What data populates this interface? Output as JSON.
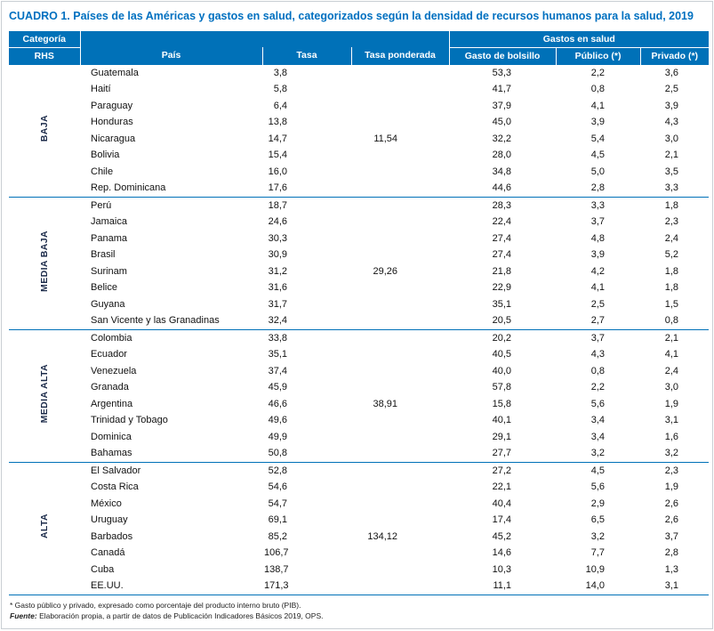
{
  "title": "CUADRO 1. Países de las Américas y gastos en salud, categorizados según la densidad de recursos humanos para la salud, 2019",
  "colors": {
    "header_blue": "#0071B8",
    "title_blue": "#0070C0",
    "separator_blue": "#0071B8"
  },
  "table": {
    "header": {
      "category_top": "Categoría",
      "category_bottom": "RHS",
      "pais": "País",
      "tasa": "Tasa",
      "tasa_ponderada": "Tasa ponderada",
      "gastos_group": "Gastos en salud",
      "gasto_bolsillo": "Gasto de bolsillo",
      "publico": "Público (*)",
      "privado": "Privado (*)"
    },
    "groups": [
      {
        "category": "BAJA",
        "rows": [
          {
            "pais": "Guatemala",
            "tasa": "3,8",
            "tasa_ponderada": "",
            "bolsillo": "53,3",
            "publico": "2,2",
            "privado": "3,6"
          },
          {
            "pais": "Haití",
            "tasa": "5,8",
            "tasa_ponderada": "",
            "bolsillo": "41,7",
            "publico": "0,8",
            "privado": "2,5"
          },
          {
            "pais": "Paraguay",
            "tasa": "6,4",
            "tasa_ponderada": "",
            "bolsillo": "37,9",
            "publico": "4,1",
            "privado": "3,9"
          },
          {
            "pais": "Honduras",
            "tasa": "13,8",
            "tasa_ponderada": "",
            "bolsillo": "45,0",
            "publico": "3,9",
            "privado": "4,3"
          },
          {
            "pais": "Nicaragua",
            "tasa": "14,7",
            "tasa_ponderada": "11,54",
            "bolsillo": "32,2",
            "publico": "5,4",
            "privado": "3,0"
          },
          {
            "pais": "Bolivia",
            "tasa": "15,4",
            "tasa_ponderada": "",
            "bolsillo": "28,0",
            "publico": "4,5",
            "privado": "2,1"
          },
          {
            "pais": "Chile",
            "tasa": "16,0",
            "tasa_ponderada": "",
            "bolsillo": "34,8",
            "publico": "5,0",
            "privado": "3,5"
          },
          {
            "pais": "Rep. Dominicana",
            "tasa": "17,6",
            "tasa_ponderada": "",
            "bolsillo": "44,6",
            "publico": "2,8",
            "privado": "3,3"
          }
        ]
      },
      {
        "category": "MEDIA BAJA",
        "rows": [
          {
            "pais": "Perú",
            "tasa": "18,7",
            "tasa_ponderada": "",
            "bolsillo": "28,3",
            "publico": "3,3",
            "privado": "1,8"
          },
          {
            "pais": "Jamaica",
            "tasa": "24,6",
            "tasa_ponderada": "",
            "bolsillo": "22,4",
            "publico": "3,7",
            "privado": "2,3"
          },
          {
            "pais": "Panama",
            "tasa": "30,3",
            "tasa_ponderada": "",
            "bolsillo": "27,4",
            "publico": "4,8",
            "privado": "2,4"
          },
          {
            "pais": "Brasil",
            "tasa": "30,9",
            "tasa_ponderada": "",
            "bolsillo": "27,4",
            "publico": "3,9",
            "privado": "5,2"
          },
          {
            "pais": "Surinam",
            "tasa": "31,2",
            "tasa_ponderada": "29,26",
            "bolsillo": "21,8",
            "publico": "4,2",
            "privado": "1,8"
          },
          {
            "pais": "Belice",
            "tasa": "31,6",
            "tasa_ponderada": "",
            "bolsillo": "22,9",
            "publico": "4,1",
            "privado": "1,8"
          },
          {
            "pais": "Guyana",
            "tasa": "31,7",
            "tasa_ponderada": "",
            "bolsillo": "35,1",
            "publico": "2,5",
            "privado": "1,5"
          },
          {
            "pais": "San Vicente y las Granadinas",
            "tasa": "32,4",
            "tasa_ponderada": "",
            "bolsillo": "20,5",
            "publico": "2,7",
            "privado": "0,8"
          }
        ]
      },
      {
        "category": "MEDIA ALTA",
        "rows": [
          {
            "pais": "Colombia",
            "tasa": "33,8",
            "tasa_ponderada": "",
            "bolsillo": "20,2",
            "publico": "3,7",
            "privado": "2,1"
          },
          {
            "pais": "Ecuador",
            "tasa": "35,1",
            "tasa_ponderada": "",
            "bolsillo": "40,5",
            "publico": "4,3",
            "privado": "4,1"
          },
          {
            "pais": "Venezuela",
            "tasa": "37,4",
            "tasa_ponderada": "",
            "bolsillo": "40,0",
            "publico": "0,8",
            "privado": "2,4"
          },
          {
            "pais": "Granada",
            "tasa": "45,9",
            "tasa_ponderada": "",
            "bolsillo": "57,8",
            "publico": "2,2",
            "privado": "3,0"
          },
          {
            "pais": "Argentina",
            "tasa": "46,6",
            "tasa_ponderada": "38,91",
            "bolsillo": "15,8",
            "publico": "5,6",
            "privado": "1,9"
          },
          {
            "pais": "Trinidad y Tobago",
            "tasa": "49,6",
            "tasa_ponderada": "",
            "bolsillo": "40,1",
            "publico": "3,4",
            "privado": "3,1"
          },
          {
            "pais": "Dominica",
            "tasa": "49,9",
            "tasa_ponderada": "",
            "bolsillo": "29,1",
            "publico": "3,4",
            "privado": "1,6"
          },
          {
            "pais": "Bahamas",
            "tasa": "50,8",
            "tasa_ponderada": "",
            "bolsillo": "27,7",
            "publico": "3,2",
            "privado": "3,2"
          }
        ]
      },
      {
        "category": "ALTA",
        "rows": [
          {
            "pais": "El Salvador",
            "tasa": "52,8",
            "tasa_ponderada": "",
            "bolsillo": "27,2",
            "publico": "4,5",
            "privado": "2,3"
          },
          {
            "pais": "Costa Rica",
            "tasa": "54,6",
            "tasa_ponderada": "",
            "bolsillo": "22,1",
            "publico": "5,6",
            "privado": "1,9"
          },
          {
            "pais": "México",
            "tasa": "54,7",
            "tasa_ponderada": "",
            "bolsillo": "40,4",
            "publico": "2,9",
            "privado": "2,6"
          },
          {
            "pais": "Uruguay",
            "tasa": "69,1",
            "tasa_ponderada": "",
            "bolsillo": "17,4",
            "publico": "6,5",
            "privado": "2,6"
          },
          {
            "pais": "Barbados",
            "tasa": "85,2",
            "tasa_ponderada": "134,12",
            "bolsillo": "45,2",
            "publico": "3,2",
            "privado": "3,7"
          },
          {
            "pais": "Canadá",
            "tasa": "106,7",
            "tasa_ponderada": "",
            "bolsillo": "14,6",
            "publico": "7,7",
            "privado": "2,8"
          },
          {
            "pais": "Cuba",
            "tasa": "138,7",
            "tasa_ponderada": "",
            "bolsillo": "10,3",
            "publico": "10,9",
            "privado": "1,3"
          },
          {
            "pais": "EE.UU.",
            "tasa": "171,3",
            "tasa_ponderada": "",
            "bolsillo": "11,1",
            "publico": "14,0",
            "privado": "3,1"
          }
        ]
      }
    ]
  },
  "footnotes": {
    "note": "* Gasto público y privado, expresado como porcentaje del producto interno bruto (PIB).",
    "source_label": "Fuente:",
    "source_text": "Elaboración propia, a partir de datos de Publicación Indicadores Básicos 2019, OPS."
  }
}
